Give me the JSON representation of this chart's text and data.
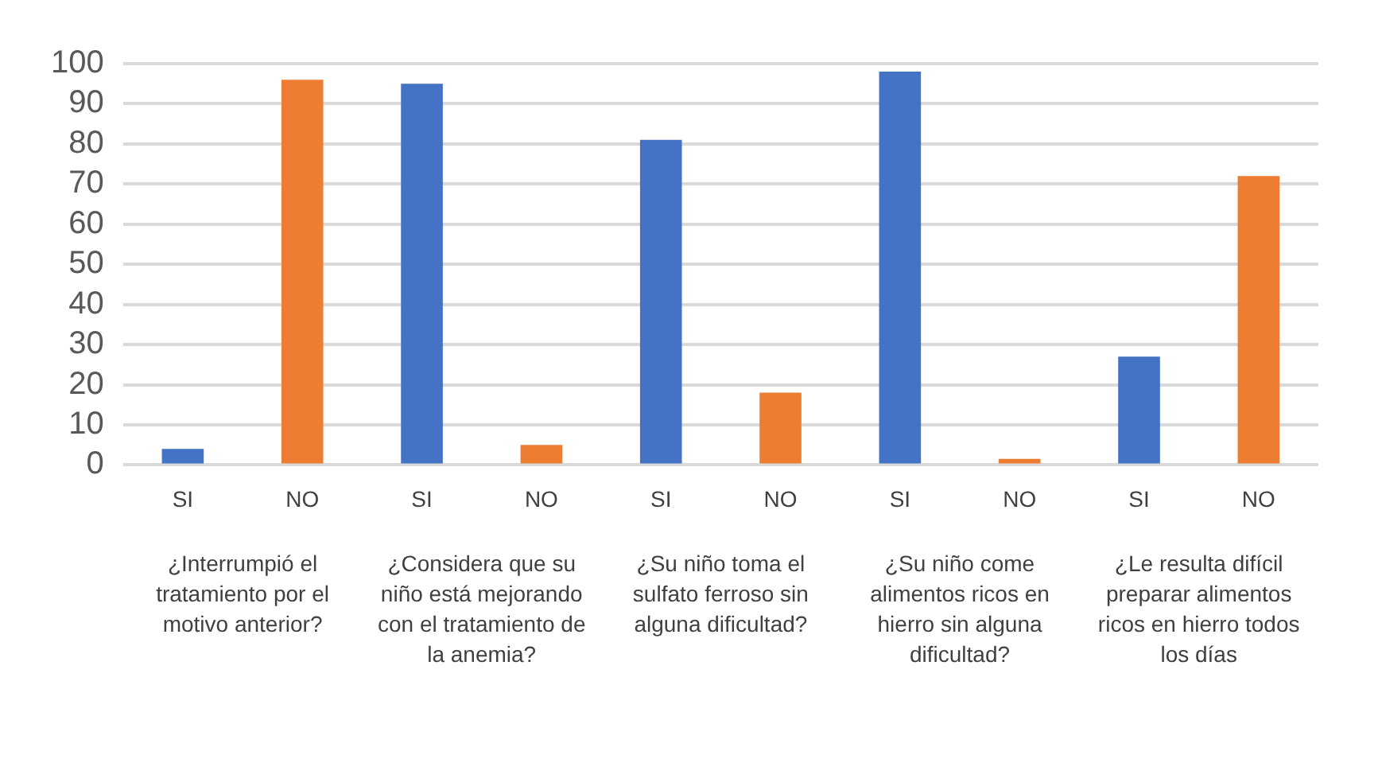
{
  "chart_data": {
    "type": "bar",
    "categories": [
      "SI",
      "NO",
      "SI",
      "NO",
      "SI",
      "NO",
      "SI",
      "NO",
      "SI",
      "NO"
    ],
    "values": [
      4,
      96,
      95,
      5,
      81,
      18,
      98,
      1.5,
      27,
      72
    ],
    "colors": [
      "#4472c4",
      "#ed7d31",
      "#4472c4",
      "#ed7d31",
      "#4472c4",
      "#ed7d31",
      "#4472c4",
      "#ed7d31",
      "#4472c4",
      "#ed7d31"
    ],
    "ylim": [
      0,
      100
    ],
    "yticks": [
      0,
      10,
      20,
      30,
      40,
      50,
      60,
      70,
      80,
      90,
      100
    ],
    "grid": "y",
    "legend": false,
    "annotations": [
      "¿Interrumpió el tratamiento por el motivo anterior?",
      "¿Considera que su niño está mejorando con el tratamiento de la anemia?",
      "¿Su niño toma el sulfato ferroso sin alguna dificultad?",
      "¿Su niño come alimentos ricos en hierro sin alguna dificultad?",
      "¿Le resulta difícil preparar alimentos ricos en hierro todos los días"
    ]
  }
}
